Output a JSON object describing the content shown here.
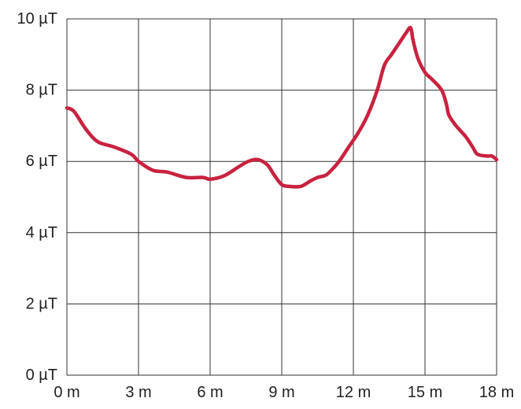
{
  "chart_data": {
    "type": "line",
    "title": "",
    "xlabel": "",
    "ylabel": "",
    "xlim": [
      0,
      18
    ],
    "ylim": [
      0,
      10
    ],
    "grid": true,
    "x_ticks": [
      0,
      3,
      6,
      9,
      12,
      15,
      18
    ],
    "x_tick_labels": [
      "0 m",
      "3 m",
      "6 m",
      "9 m",
      "12 m",
      "15 m",
      "18 m"
    ],
    "y_ticks": [
      0,
      2,
      4,
      6,
      8,
      10
    ],
    "y_tick_labels": [
      "0 µT",
      "2 µT",
      "4 µT",
      "6 µT",
      "8 µT",
      "10 µT"
    ],
    "series": [
      {
        "color": "#c8223f",
        "x": [
          0,
          0.3,
          0.8,
          1.3,
          2.0,
          2.7,
          3.0,
          3.6,
          4.2,
          5.0,
          5.7,
          6.0,
          6.6,
          7.2,
          7.6,
          8.0,
          8.4,
          8.7,
          9.0,
          9.3,
          9.8,
          10.2,
          10.5,
          10.8,
          11.0,
          11.4,
          11.8,
          12.2,
          12.6,
          13.0,
          13.3,
          13.6,
          14.0,
          14.2,
          14.4,
          14.5,
          14.7,
          15.0,
          15.3,
          15.7,
          15.9,
          16.0,
          16.3,
          16.7,
          17.0,
          17.2,
          17.6,
          17.8,
          18.0
        ],
        "y": [
          7.5,
          7.4,
          6.9,
          6.55,
          6.4,
          6.2,
          6.0,
          5.75,
          5.7,
          5.55,
          5.55,
          5.5,
          5.6,
          5.85,
          6.0,
          6.05,
          5.9,
          5.6,
          5.35,
          5.3,
          5.3,
          5.45,
          5.55,
          5.6,
          5.7,
          6.0,
          6.4,
          6.8,
          7.3,
          8.0,
          8.7,
          9.0,
          9.4,
          9.6,
          9.75,
          9.4,
          8.9,
          8.5,
          8.3,
          8.0,
          7.6,
          7.3,
          7.0,
          6.7,
          6.4,
          6.2,
          6.15,
          6.15,
          6.05
        ]
      }
    ]
  }
}
